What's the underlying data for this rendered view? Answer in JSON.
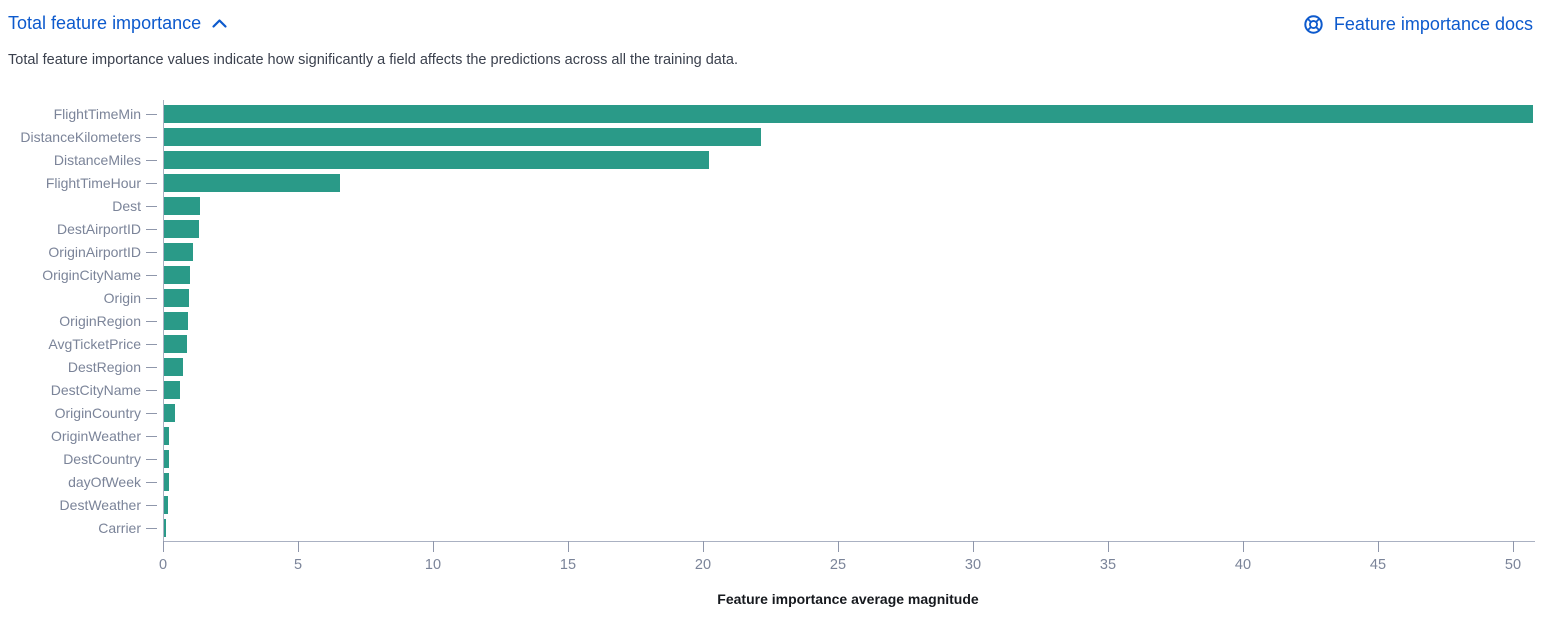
{
  "header": {
    "title": "Total feature importance",
    "docs_link": "Feature importance docs",
    "subtitle": "Total feature importance values indicate how significantly a field affects the predictions across all the training data."
  },
  "colors": {
    "bar": "#2a9a88",
    "link": "#0d5acd",
    "axis_label": "#7b8499",
    "axis_line": "#aab1c2",
    "subtitle_text": "#3b414e",
    "axis_title_text": "#16191e"
  },
  "icons": {
    "collapse": "chevron-up-icon",
    "docs": "life-ring-docs-icon"
  },
  "chart_data": {
    "type": "bar",
    "orientation": "horizontal",
    "title": "Total feature importance",
    "xlabel": "Feature importance average magnitude",
    "ylabel": "",
    "categories": [
      "FlightTimeMin",
      "DistanceKilometers",
      "DistanceMiles",
      "FlightTimeHour",
      "Dest",
      "DestAirportID",
      "OriginAirportID",
      "OriginCityName",
      "Origin",
      "OriginRegion",
      "AvgTicketPrice",
      "DestRegion",
      "DestCityName",
      "OriginCountry",
      "OriginWeather",
      "DestCountry",
      "dayOfWeek",
      "DestWeather",
      "Carrier"
    ],
    "values": [
      50.7,
      22.1,
      20.2,
      6.5,
      1.35,
      1.3,
      1.07,
      0.97,
      0.94,
      0.89,
      0.85,
      0.7,
      0.6,
      0.4,
      0.2,
      0.18,
      0.17,
      0.15,
      0.06
    ],
    "x_ticks": [
      0,
      5,
      10,
      15,
      20,
      25,
      30,
      35,
      40,
      45,
      50
    ],
    "xlim": [
      0,
      50.7
    ],
    "grid": false,
    "legend": "none",
    "bar_color": "#2a9a88"
  }
}
